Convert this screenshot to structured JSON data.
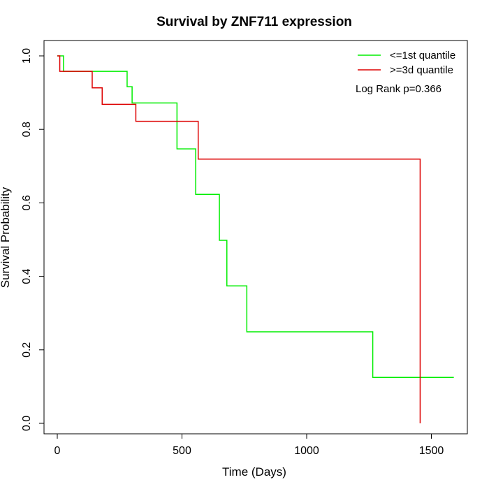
{
  "chart_data": {
    "type": "line",
    "step": true,
    "title": "Survival by ZNF711 expression",
    "xlabel": "Time (Days)",
    "ylabel": "Survival Probability",
    "xlim": [
      0,
      1600
    ],
    "ylim": [
      0,
      1.0
    ],
    "xticks": [
      0,
      500,
      1000,
      1500
    ],
    "yticks": [
      0.0,
      0.2,
      0.4,
      0.6,
      0.8,
      1.0
    ],
    "xtick_labels": [
      "0",
      "500",
      "1000",
      "1500"
    ],
    "ytick_labels": [
      "0.0",
      "0.2",
      "0.4",
      "0.6",
      "0.8",
      "1.0"
    ],
    "grid": false,
    "legend_position": "top-right",
    "annotation": "Log Rank p=0.366",
    "series": [
      {
        "name": "<=1st quantile",
        "color": "#00ee00",
        "x": [
          0,
          25,
          280,
          300,
          480,
          555,
          650,
          680,
          760,
          1265,
          1590
        ],
        "y": [
          1.0,
          0.958,
          0.916,
          0.872,
          0.747,
          0.623,
          0.498,
          0.374,
          0.249,
          0.125,
          0.125
        ]
      },
      {
        "name": ">=3d quantile",
        "color": "#dd0000",
        "x": [
          0,
          10,
          140,
          180,
          315,
          565,
          1455,
          1455
        ],
        "y": [
          1.0,
          0.958,
          0.913,
          0.868,
          0.822,
          0.719,
          0.719,
          0.0
        ]
      }
    ]
  }
}
